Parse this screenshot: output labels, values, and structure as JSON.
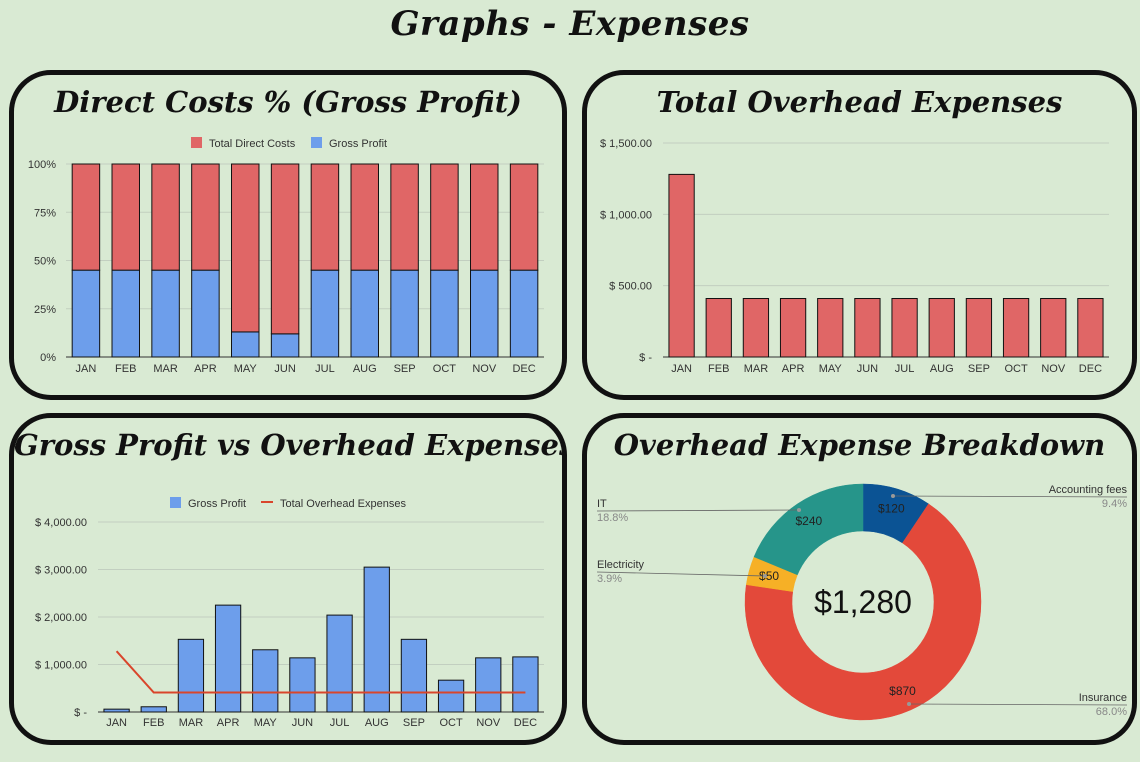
{
  "page": {
    "title": "Graphs - Expenses"
  },
  "months": [
    "JAN",
    "FEB",
    "MAR",
    "APR",
    "MAY",
    "JUN",
    "JUL",
    "AUG",
    "SEP",
    "OCT",
    "NOV",
    "DEC"
  ],
  "colors": {
    "direct_costs": "#e06666",
    "gross_profit": "#6d9eeb",
    "overhead_bar": "#e06666",
    "overhead_line": "#d9452b",
    "accounting": "#0b5394",
    "it": "#26958a",
    "electricity": "#f6b026",
    "insurance": "#e3493a"
  },
  "chart_data": [
    {
      "id": "direct-costs",
      "type": "bar",
      "stacked": "percent",
      "title": "Direct Costs % (Gross Profit)",
      "categories": [
        "JAN",
        "FEB",
        "MAR",
        "APR",
        "MAY",
        "JUN",
        "JUL",
        "AUG",
        "SEP",
        "OCT",
        "NOV",
        "DEC"
      ],
      "series": [
        {
          "name": "Gross Profit",
          "values": [
            45,
            45,
            45,
            45,
            13,
            12,
            45,
            45,
            45,
            45,
            45,
            45
          ]
        },
        {
          "name": "Total Direct Costs",
          "values": [
            55,
            55,
            55,
            55,
            87,
            88,
            55,
            55,
            55,
            55,
            55,
            55
          ]
        }
      ],
      "legend": [
        "Total Direct Costs",
        "Gross Profit"
      ],
      "legend_position": "top",
      "ylim": [
        0,
        100
      ],
      "yticks": [
        "0%",
        "25%",
        "50%",
        "75%",
        "100%"
      ],
      "grid": true
    },
    {
      "id": "total-overhead",
      "type": "bar",
      "title": "Total Overhead Expenses",
      "categories": [
        "JAN",
        "FEB",
        "MAR",
        "APR",
        "MAY",
        "JUN",
        "JUL",
        "AUG",
        "SEP",
        "OCT",
        "NOV",
        "DEC"
      ],
      "values": [
        1280,
        410,
        410,
        410,
        410,
        410,
        410,
        410,
        410,
        410,
        410,
        410
      ],
      "ylim": [
        0,
        1500
      ],
      "yticks": [
        "$ -",
        "$ 500.00",
        "$ 1,000.00",
        "$ 1,500.00"
      ],
      "grid": true
    },
    {
      "id": "gp-vs-overhead",
      "type": "bar",
      "title": "Gross Profit vs Overhead Expenses",
      "categories": [
        "JAN",
        "FEB",
        "MAR",
        "APR",
        "MAY",
        "JUN",
        "JUL",
        "AUG",
        "SEP",
        "OCT",
        "NOV",
        "DEC"
      ],
      "series": [
        {
          "name": "Gross Profit",
          "type": "bar",
          "values": [
            60,
            110,
            1530,
            2250,
            1310,
            1140,
            2040,
            3050,
            1530,
            670,
            1140,
            1160
          ]
        },
        {
          "name": "Total Overhead Expenses",
          "type": "line",
          "values": [
            1280,
            410,
            410,
            410,
            410,
            410,
            410,
            410,
            410,
            410,
            410,
            410
          ]
        }
      ],
      "legend_position": "top",
      "ylim": [
        0,
        4000
      ],
      "yticks": [
        "$ -",
        "$ 1,000.00",
        "$ 2,000.00",
        "$ 3,000.00",
        "$ 4,000.00"
      ],
      "grid": true
    },
    {
      "id": "overhead-breakdown",
      "type": "pie",
      "donut": true,
      "title": "Overhead Expense Breakdown",
      "center_label": "$1,280",
      "slices": [
        {
          "name": "Accounting fees",
          "value": 120,
          "label": "$120",
          "percent": "9.4%",
          "color": "#0b5394"
        },
        {
          "name": "Insurance",
          "value": 870,
          "label": "$870",
          "percent": "68.0%",
          "color": "#e3493a"
        },
        {
          "name": "Electricity",
          "value": 50,
          "label": "$50",
          "percent": "3.9%",
          "color": "#f6b026"
        },
        {
          "name": "IT",
          "value": 240,
          "label": "$240",
          "percent": "18.8%",
          "color": "#26958a"
        }
      ]
    }
  ]
}
